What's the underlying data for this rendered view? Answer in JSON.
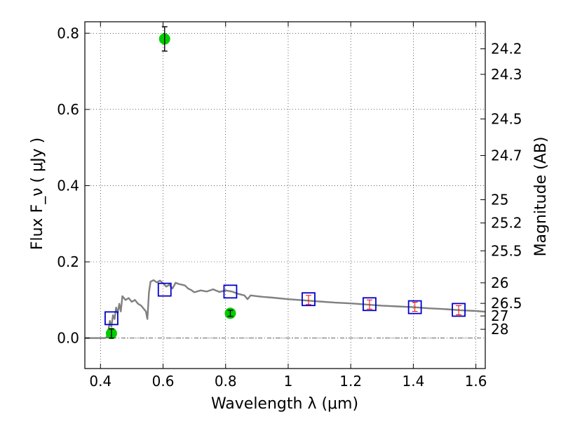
{
  "chart_data": {
    "type": "scatter",
    "xlabel": "Wavelength  λ (μm)",
    "ylabel": "Flux  F_ν  ( μJy )",
    "y2label": "Magnitude (AB)",
    "xlim": [
      0.35,
      1.63
    ],
    "ylim": [
      -0.08,
      0.83
    ],
    "x_ticks": [
      0.4,
      0.6,
      0.8,
      1.0,
      1.2,
      1.4,
      1.6
    ],
    "x_tick_labels": [
      "0.4",
      "0.6",
      "0.8",
      "1",
      "1.2",
      "1.4",
      "1.6"
    ],
    "y_ticks": [
      0.0,
      0.2,
      0.4,
      0.6,
      0.8
    ],
    "y_tick_labels": [
      "0.0",
      "0.2",
      "0.4",
      "0.6",
      "0.8"
    ],
    "mag_ticks": [
      {
        "label": "24.2",
        "flux": 0.759
      },
      {
        "label": "24.3",
        "flux": 0.692
      },
      {
        "label": "24.5",
        "flux": 0.575
      },
      {
        "label": "24.7",
        "flux": 0.479
      },
      {
        "label": "25",
        "flux": 0.363
      },
      {
        "label": "25.2",
        "flux": 0.302
      },
      {
        "label": "25.5",
        "flux": 0.229
      },
      {
        "label": "26",
        "flux": 0.145
      },
      {
        "label": "26.5",
        "flux": 0.091
      },
      {
        "label": "27",
        "flux": 0.058
      },
      {
        "label": "28",
        "flux": 0.023
      }
    ],
    "grid": true,
    "series": [
      {
        "name": "model SED",
        "kind": "line",
        "color": "#808080",
        "x": [
          0.35,
          0.4,
          0.415,
          0.42,
          0.425,
          0.43,
          0.435,
          0.44,
          0.445,
          0.45,
          0.455,
          0.46,
          0.465,
          0.47,
          0.48,
          0.49,
          0.5,
          0.51,
          0.52,
          0.53,
          0.54,
          0.545,
          0.55,
          0.555,
          0.56,
          0.57,
          0.58,
          0.59,
          0.6,
          0.61,
          0.62,
          0.63,
          0.64,
          0.65,
          0.66,
          0.67,
          0.68,
          0.69,
          0.7,
          0.72,
          0.74,
          0.76,
          0.78,
          0.8,
          0.82,
          0.84,
          0.86,
          0.87,
          0.88,
          0.9,
          0.92,
          0.95,
          1.0,
          1.05,
          1.1,
          1.15,
          1.2,
          1.25,
          1.3,
          1.35,
          1.4,
          1.45,
          1.5,
          1.55,
          1.6,
          1.63
        ],
        "y": [
          0.0,
          0.0,
          0.0,
          0.003,
          0.02,
          0.045,
          0.03,
          0.06,
          0.05,
          0.08,
          0.065,
          0.09,
          0.07,
          0.11,
          0.1,
          0.105,
          0.095,
          0.1,
          0.09,
          0.085,
          0.075,
          0.07,
          0.05,
          0.12,
          0.148,
          0.152,
          0.146,
          0.151,
          0.144,
          0.135,
          0.14,
          0.13,
          0.145,
          0.142,
          0.14,
          0.138,
          0.13,
          0.126,
          0.12,
          0.125,
          0.122,
          0.128,
          0.121,
          0.125,
          0.122,
          0.116,
          0.112,
          0.102,
          0.112,
          0.11,
          0.108,
          0.106,
          0.102,
          0.099,
          0.096,
          0.093,
          0.091,
          0.088,
          0.085,
          0.083,
          0.081,
          0.078,
          0.076,
          0.073,
          0.071,
          0.069
        ]
      },
      {
        "name": "model photometry",
        "kind": "square",
        "color": "#0000cc",
        "x": [
          0.435,
          0.605,
          0.815,
          1.065,
          1.26,
          1.405,
          1.545
        ],
        "y": [
          0.052,
          0.127,
          0.122,
          0.102,
          0.089,
          0.081,
          0.074
        ]
      },
      {
        "name": "observed photometry",
        "kind": "circle",
        "color": "#00cc00",
        "x": [
          0.435,
          0.605,
          0.815
        ],
        "y": [
          0.012,
          0.785,
          0.065
        ],
        "yerr": [
          0.012,
          0.032,
          0.008
        ]
      },
      {
        "name": "upper-limit errors",
        "kind": "errorbar",
        "color": "#ff0000",
        "x": [
          1.065,
          1.26,
          1.405,
          1.545
        ],
        "y": [
          0.1,
          0.088,
          0.082,
          0.073
        ],
        "yerr": [
          0.012,
          0.012,
          0.012,
          0.012
        ]
      }
    ]
  }
}
